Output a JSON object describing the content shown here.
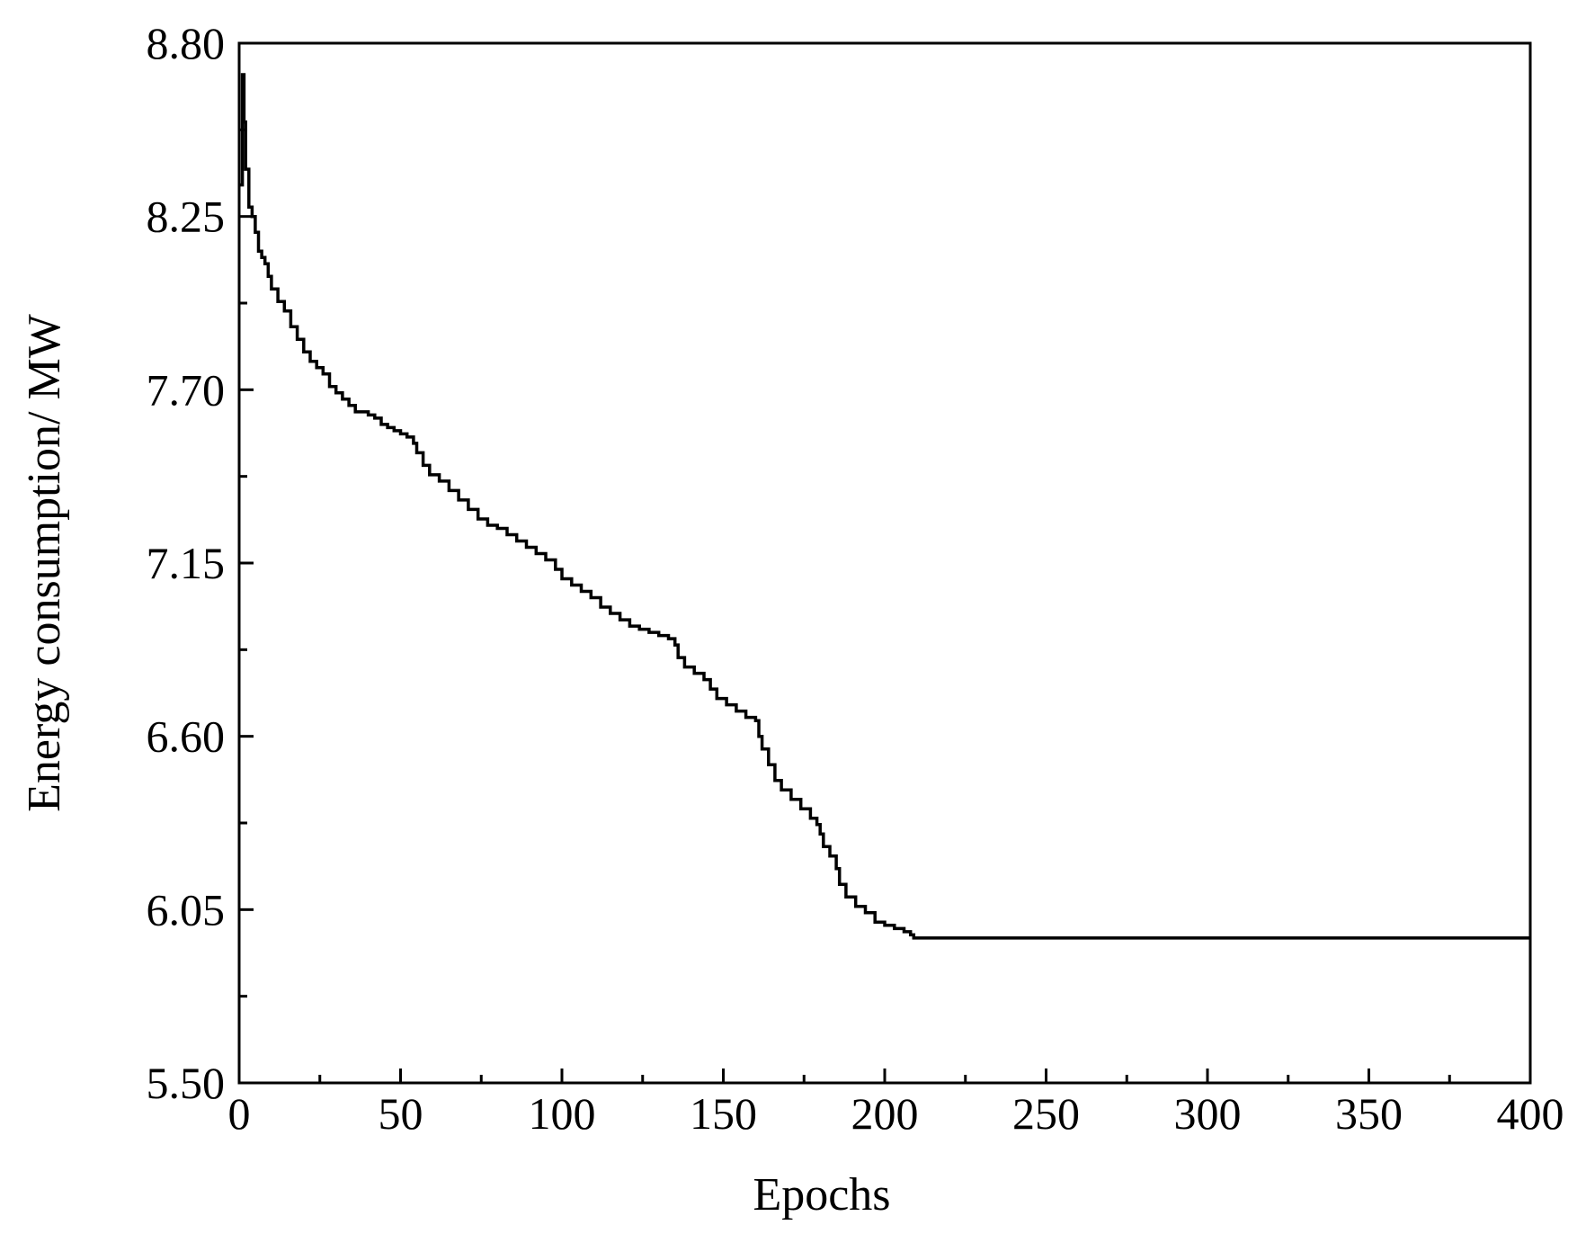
{
  "chart_data": {
    "type": "line",
    "title": "",
    "xlabel": "Epochs",
    "ylabel": "Energy consumption/ MW",
    "xlim": [
      0,
      400
    ],
    "ylim": [
      5.5,
      8.8
    ],
    "x_ticks": [
      "0",
      "50",
      "100",
      "150",
      "200",
      "250",
      "300",
      "350",
      "400"
    ],
    "y_ticks": [
      "5.50",
      "6.05",
      "6.60",
      "7.15",
      "7.70",
      "8.25",
      "8.80"
    ],
    "grid": false,
    "legend": "none",
    "line_color": "#000000",
    "series": [
      {
        "x": [
          0,
          1,
          1.5,
          2,
          3,
          4,
          5,
          6,
          7,
          8,
          9,
          10,
          12,
          14,
          16,
          18,
          20,
          22,
          24,
          26,
          28,
          30,
          32,
          34,
          36,
          38,
          40,
          42,
          44,
          46,
          48,
          50,
          52,
          54,
          55,
          57,
          59,
          62,
          65,
          68,
          71,
          74,
          77,
          80,
          83,
          86,
          89,
          92,
          95,
          98,
          100,
          103,
          106,
          109,
          112,
          115,
          118,
          121,
          124,
          127,
          130,
          133,
          135,
          136,
          138,
          141,
          144,
          146,
          148,
          151,
          154,
          157,
          160,
          161,
          162,
          164,
          166,
          168,
          171,
          174,
          177,
          179,
          180,
          181,
          183,
          185,
          186,
          188,
          191,
          194,
          197,
          200,
          203,
          206,
          208,
          209,
          210,
          400
        ],
        "y": [
          8.35,
          8.7,
          8.55,
          8.4,
          8.28,
          8.25,
          8.2,
          8.14,
          8.12,
          8.1,
          8.06,
          8.02,
          7.98,
          7.95,
          7.9,
          7.86,
          7.82,
          7.79,
          7.77,
          7.75,
          7.71,
          7.69,
          7.67,
          7.65,
          7.63,
          7.63,
          7.62,
          7.61,
          7.59,
          7.58,
          7.57,
          7.56,
          7.55,
          7.53,
          7.5,
          7.46,
          7.43,
          7.41,
          7.38,
          7.35,
          7.32,
          7.29,
          7.27,
          7.26,
          7.24,
          7.22,
          7.2,
          7.18,
          7.16,
          7.13,
          7.1,
          7.08,
          7.06,
          7.04,
          7.01,
          6.99,
          6.97,
          6.95,
          6.94,
          6.93,
          6.92,
          6.91,
          6.89,
          6.85,
          6.82,
          6.8,
          6.78,
          6.75,
          6.72,
          6.7,
          6.68,
          6.66,
          6.65,
          6.6,
          6.56,
          6.51,
          6.46,
          6.43,
          6.4,
          6.37,
          6.34,
          6.32,
          6.29,
          6.25,
          6.22,
          6.18,
          6.13,
          6.09,
          6.06,
          6.04,
          6.01,
          6.0,
          5.99,
          5.98,
          5.97,
          5.96,
          5.96,
          5.96
        ]
      }
    ]
  }
}
